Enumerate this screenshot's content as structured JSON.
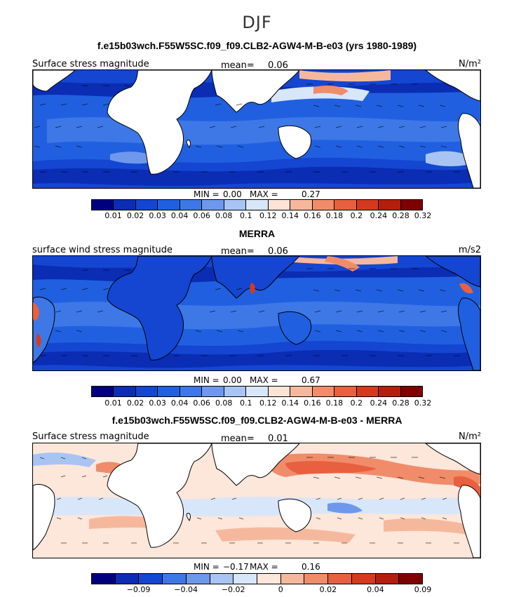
{
  "season": "DJF",
  "panels": [
    {
      "title": "f.e15b03wch.F55W5SC.f09_f09.CLB2-AGW4-M-B-e03 (yrs 1980-1989)",
      "left_label": "Surface stress magnitude",
      "mean_label": "mean=",
      "mean_value": "0.06",
      "units": "N/m²",
      "min_label": "MIN =",
      "min_value": "0.00",
      "max_label": "MAX =",
      "max_value": "0.27",
      "ticks": [
        "0.01",
        "0.02",
        "0.03",
        "0.04",
        "0.06",
        "0.08",
        "0.1",
        "0.12",
        "0.14",
        "0.16",
        "0.18",
        "0.2",
        "0.24",
        "0.28",
        "0.32"
      ]
    },
    {
      "title": "MERRA",
      "left_label": "surface wind stress magnitude",
      "mean_label": "mean=",
      "mean_value": "0.06",
      "units": "m/s2",
      "min_label": "MIN =",
      "min_value": "0.00",
      "max_label": "MAX =",
      "max_value": "0.67",
      "ticks": [
        "0.01",
        "0.02",
        "0.03",
        "0.04",
        "0.06",
        "0.08",
        "0.1",
        "0.12",
        "0.14",
        "0.16",
        "0.18",
        "0.2",
        "0.24",
        "0.28",
        "0.32"
      ]
    },
    {
      "title": "f.e15b03wch.F55W5SC.f09_f09.CLB2-AGW4-M-B-e03 - MERRA",
      "left_label": "Surface stress magnitude",
      "mean_label": "mean=",
      "mean_value": "0.01",
      "units": "N/m²",
      "min_label": "MIN =",
      "min_value": "−0.17",
      "max_label": "MAX =",
      "max_value": "0.16",
      "ticks": [
        "−0.09",
        "−0.04",
        "−0.02",
        "0",
        "0.02",
        "0.04",
        "0.09"
      ]
    }
  ],
  "colors": {
    "seq": [
      "#00007f",
      "#0a2db4",
      "#1446d2",
      "#2060e0",
      "#3d78e6",
      "#6e98ec",
      "#a8c4f2",
      "#d8e6fa",
      "#fbe3d6",
      "#f6b89c",
      "#f08c6a",
      "#e8603f",
      "#d63a1e",
      "#b41e0c",
      "#7f0000"
    ],
    "div": [
      "#00007f",
      "#0a2db4",
      "#1446d2",
      "#3d78e6",
      "#6e98ec",
      "#a8c4f2",
      "#d8e6fa",
      "#fde6da",
      "#f6b89c",
      "#f08c6a",
      "#e8603f",
      "#d63a1e",
      "#b41e0c",
      "#7f0000"
    ]
  }
}
